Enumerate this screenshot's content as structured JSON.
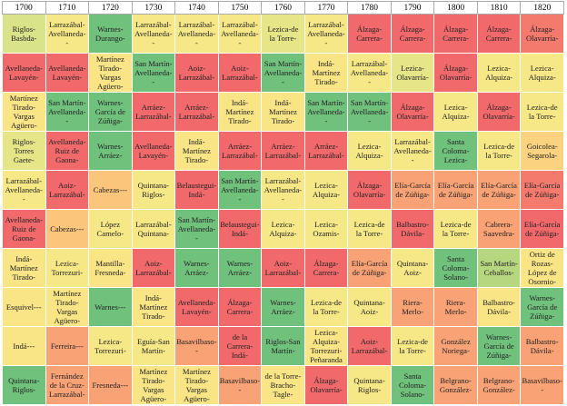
{
  "table": {
    "columns": [
      "1700",
      "1710",
      "1720",
      "1730",
      "1740",
      "1750",
      "1760",
      "1770",
      "1780",
      "1790",
      "1800",
      "1810",
      "1820"
    ],
    "rows": [
      [
        {
          "text": "Riglos-\nBasbda-",
          "color": "#d9e38a"
        },
        {
          "text": "Larrazábal-\nAvellaneda-\n-",
          "color": "#f7e887"
        },
        {
          "text": "Warnes-\nDurango-",
          "color": "#6fc17c"
        },
        {
          "text": "Larrazábal-\nAvellaneda-\n-",
          "color": "#f7e887"
        },
        {
          "text": "Larrazábal-\nAvellaneda-\n-",
          "color": "#f7e887"
        },
        {
          "text": "Larrazábal-\nAvellaneda-\n-",
          "color": "#f7e887"
        },
        {
          "text": "Lezica-de\nla Torre-",
          "color": "#e6e588"
        },
        {
          "text": "Larrazábal-\nAvellaneda-\n-",
          "color": "#f7e887"
        },
        {
          "text": "Álzaga-\nCarrera-",
          "color": "#f1696b"
        },
        {
          "text": "Álzaga-\nCarrera-",
          "color": "#f1696b"
        },
        {
          "text": "Álzaga-\nCarrera-",
          "color": "#f1696b"
        },
        {
          "text": "Álzaga-\nCarrera-",
          "color": "#f1696b"
        },
        {
          "text": "Álzaga-\nOlavarría-",
          "color": "#f37a6d"
        }
      ],
      [
        {
          "text": "Avellaneda-\nLavayén-",
          "color": "#f1696b"
        },
        {
          "text": "Avellaneda-\nLavayén-",
          "color": "#f1696b"
        },
        {
          "text": "Martínez\nTirado-\nVargas\nAgüero-",
          "color": "#f9e486"
        },
        {
          "text": "San Martín-\nAvellaneda-\n-",
          "color": "#6fc17c"
        },
        {
          "text": "Aoiz-\nLarrazábal-",
          "color": "#f1696b"
        },
        {
          "text": "Aoiz-\nLarrazábal-",
          "color": "#f1696b"
        },
        {
          "text": "San Martín-\nAvellaneda-\n-",
          "color": "#6fc17c"
        },
        {
          "text": "Indá-\nMartínez\nTirado-",
          "color": "#f9e486"
        },
        {
          "text": "Larrazábal-\nAvellaneda-\n-",
          "color": "#f7e887"
        },
        {
          "text": "Lezica-\nOlavarría-",
          "color": "#e6e588"
        },
        {
          "text": "Álzaga-\nOlavarría-",
          "color": "#f1696b"
        },
        {
          "text": "Lezica-\nAlquiza-",
          "color": "#f7e887"
        },
        {
          "text": "Lezica-\nAlquiza-",
          "color": "#f7e887"
        }
      ],
      [
        {
          "text": "Martínez\nTirado-\nVargas\nAgüero-",
          "color": "#f9e486"
        },
        {
          "text": "San Martín-\nAvellaneda-\n-",
          "color": "#6fc17c"
        },
        {
          "text": "Warnes-\nGarcía de\nZúñiga-",
          "color": "#6fc17c"
        },
        {
          "text": "Arráez-\nLarrazábal-",
          "color": "#f1696b"
        },
        {
          "text": "Arráez-\nLarrazábal-",
          "color": "#f1696b"
        },
        {
          "text": "Indá-\nMartínez\nTirado-",
          "color": "#f9e486"
        },
        {
          "text": "Indá-\nMartínez\nTirado-",
          "color": "#f9e486"
        },
        {
          "text": "San Martín-\nAvellaneda-\n-",
          "color": "#6fc17c"
        },
        {
          "text": "San Martín-\nAvellaneda-\n-",
          "color": "#6fc17c"
        },
        {
          "text": "Álzaga-\nOlavarría-",
          "color": "#f1696b"
        },
        {
          "text": "Lezica-\nAlquiza-",
          "color": "#f7e887"
        },
        {
          "text": "Álzaga-\nOlavarría-",
          "color": "#f1696b"
        },
        {
          "text": "Lezica-de\nla Torre-",
          "color": "#f7e887"
        }
      ],
      [
        {
          "text": "Riglos-\nTorres\nGaete-",
          "color": "#e6e588"
        },
        {
          "text": "Avellaneda-\nRuiz de\nGaona-",
          "color": "#f1696b"
        },
        {
          "text": "Warnes-\nArráez-",
          "color": "#6fc17c"
        },
        {
          "text": "Avellaneda-\nLavayén-",
          "color": "#f1696b"
        },
        {
          "text": "Indá-\nMartínez\nTirado-",
          "color": "#f9e486"
        },
        {
          "text": "Arráez-\nLarrazábal-",
          "color": "#f1696b"
        },
        {
          "text": "Arráez-\nLarrazábal-",
          "color": "#f1696b"
        },
        {
          "text": "Arráez-\nLarrazábal-",
          "color": "#f1696b"
        },
        {
          "text": "Lezica-\nAlquiza-",
          "color": "#f7e887"
        },
        {
          "text": "Larrazábal-\nAvellaneda-\n-",
          "color": "#f7e887"
        },
        {
          "text": "Santa\nColoma-\nLezica-",
          "color": "#6fc17c"
        },
        {
          "text": "Lezica-de\nla Torre-",
          "color": "#f7e887"
        },
        {
          "text": "Goicolea-\nSegarola-",
          "color": "#fbd27f"
        }
      ],
      [
        {
          "text": "Larrazábal-\nAvellaneda-\n-",
          "color": "#f7e887"
        },
        {
          "text": "Aoiz-\nLarrazábal-",
          "color": "#f1696b"
        },
        {
          "text": "Cabezas---",
          "color": "#fbc57c"
        },
        {
          "text": "Quintana-\nRiglos-",
          "color": "#f7e887"
        },
        {
          "text": "Belaustegui-\nIndá-",
          "color": "#f1696b"
        },
        {
          "text": "San Martín-\nAvellaneda-\n-",
          "color": "#6fc17c"
        },
        {
          "text": "Larrazábal-\nAvellaneda-\n-",
          "color": "#f7e887"
        },
        {
          "text": "Lezica-\nAlquiza-",
          "color": "#f7e887"
        },
        {
          "text": "Álzaga-\nOlavarría-",
          "color": "#f1696b"
        },
        {
          "text": "Elía-García\nde Zúñiga-",
          "color": "#f8a275"
        },
        {
          "text": "Elía-García\nde Zúñiga-",
          "color": "#f8a275"
        },
        {
          "text": "Elía-García\nde Zúñiga-",
          "color": "#f8a275"
        },
        {
          "text": "Elía-García\nde Zúñiga-",
          "color": "#f37a6d"
        }
      ],
      [
        {
          "text": "Avellaneda-\nRuiz de\nGaona-",
          "color": "#f1696b"
        },
        {
          "text": "Cabezas---",
          "color": "#fbc57c"
        },
        {
          "text": "López\nCamelo-",
          "color": "#f7e887"
        },
        {
          "text": "Larrazábal-\nQuintana-",
          "color": "#f7e887"
        },
        {
          "text": "San Martín-\nAvellaneda-\n-",
          "color": "#6fc17c"
        },
        {
          "text": "Belaustegui-\nIndá-",
          "color": "#f1696b"
        },
        {
          "text": "Lezica-\nAlquiza-",
          "color": "#f7e887"
        },
        {
          "text": "Lezica-\nOzamis-",
          "color": "#f7e887"
        },
        {
          "text": "Lezica-de\nla Torre-",
          "color": "#f7e887"
        },
        {
          "text": "Balbastro-\nDávila-",
          "color": "#f1696b"
        },
        {
          "text": "Lezica-de\nla Torre-",
          "color": "#f7e887"
        },
        {
          "text": "Cabrera-\nSaavedra-",
          "color": "#f8a275"
        },
        {
          "text": "Elía-García\nde Zúñiga-",
          "color": "#f1696b"
        }
      ],
      [
        {
          "text": "Indá-\nMartínez\nTirado-",
          "color": "#f9e486"
        },
        {
          "text": "Lezica-\nTorrezuri-",
          "color": "#f7e887"
        },
        {
          "text": "Mantilla-\nFresneda-",
          "color": "#f9e486"
        },
        {
          "text": "Aoiz-\nLarrazábal-",
          "color": "#f1696b"
        },
        {
          "text": "Warnes-\nArráez-",
          "color": "#6fc17c"
        },
        {
          "text": "Warnes-\nArráez-",
          "color": "#6fc17c"
        },
        {
          "text": "Aoiz-\nLarrazábal-",
          "color": "#f1696b"
        },
        {
          "text": "Álzaga-\nCarrera-",
          "color": "#f1696b"
        },
        {
          "text": "Elía-García\nde Zúñiga-",
          "color": "#f8a275"
        },
        {
          "text": "Quintana-\nAoiz-",
          "color": "#f7e887"
        },
        {
          "text": "Santa\nColoma-\nSolano-",
          "color": "#6fc17c"
        },
        {
          "text": "San Martín-\nCeballos-",
          "color": "#b6d680"
        },
        {
          "text": "Ortiz de\nRozas-\nLópez de\nOsornio-",
          "color": "#f9e486"
        }
      ],
      [
        {
          "text": "Esquivel---",
          "color": "#f9e486"
        },
        {
          "text": "Martínez\nTirado-\nVargas\nAgüero-",
          "color": "#f9e486"
        },
        {
          "text": "Warnes---",
          "color": "#6fc17c"
        },
        {
          "text": "Indá-\nMartínez\nTirado-",
          "color": "#f9e486"
        },
        {
          "text": "Avellaneda-\nLavayén-",
          "color": "#f1696b"
        },
        {
          "text": "Álzaga-\nCarrera-",
          "color": "#f1696b"
        },
        {
          "text": "Warnes-\nArráez-",
          "color": "#6fc17c"
        },
        {
          "text": "Lezica-de\nla Torre-",
          "color": "#f7e887"
        },
        {
          "text": "Quintana-\nAoiz-",
          "color": "#f7e887"
        },
        {
          "text": "Riera-\nMerlo-",
          "color": "#f8a275"
        },
        {
          "text": "Riera-\nMerlo-",
          "color": "#f8a275"
        },
        {
          "text": "Balbastro-\nDávila-",
          "color": "#f9e486"
        },
        {
          "text": "Warnes-\nGarcía de\nZúñiga-",
          "color": "#6fc17c"
        }
      ],
      [
        {
          "text": "Indá---",
          "color": "#f9e486"
        },
        {
          "text": "Ferreira---",
          "color": "#f8a275"
        },
        {
          "text": "Lezica-\nTorrezuri-",
          "color": "#f7e887"
        },
        {
          "text": "Eguía-San\nMartín-",
          "color": "#f7e887"
        },
        {
          "text": "Basavilbaso-\n-",
          "color": "#f8a275"
        },
        {
          "text": "de la\nCarrera-\nIndá-",
          "color": "#f1696b"
        },
        {
          "text": "Riglos-San\nMartín-",
          "color": "#6fc17c"
        },
        {
          "text": "Lezica-\nAlquiza-\nTorrezuri-\nPeñaranda",
          "color": "#f9e486"
        },
        {
          "text": "Aoiz-\nLarrazábal-",
          "color": "#f1696b"
        },
        {
          "text": "Lezica-de\nla Torre-",
          "color": "#f7e887"
        },
        {
          "text": "González\nNoriega-",
          "color": "#f8a275"
        },
        {
          "text": "Warnes-\nGarcía de\nZúñiga-",
          "color": "#6fc17c"
        },
        {
          "text": "Balbastro-\nDávila-",
          "color": "#f8a275"
        }
      ],
      [
        {
          "text": "Quintana-\nRiglos-",
          "color": "#6fc17c"
        },
        {
          "text": "Fernández\nde la Cruz-\nLarrazábal-",
          "color": "#f8a275"
        },
        {
          "text": "Fresneda---",
          "color": "#f8a275"
        },
        {
          "text": "Martínez\nTirado-\nVargas\nAgüero-",
          "color": "#f9e486"
        },
        {
          "text": "Martínez\nTirado-\nVargas\nAgüero-",
          "color": "#f9e486"
        },
        {
          "text": "Basavilbaso-\n-",
          "color": "#f8a275"
        },
        {
          "text": "de la Torre-\nBracho-\nTagle-",
          "color": "#f9e486"
        },
        {
          "text": "Álzaga-\nOlavarría-",
          "color": "#f1696b"
        },
        {
          "text": "Quintana-\nRiglos-",
          "color": "#f7e887"
        },
        {
          "text": "Santa\nColoma-\nSolano-",
          "color": "#6fc17c"
        },
        {
          "text": "Belgrano-\nGonzález-",
          "color": "#f8a275"
        },
        {
          "text": "Belgrano-\nGonzález-",
          "color": "#f8a275"
        },
        {
          "text": "Basavilbaso-\n-",
          "color": "#f8a275"
        }
      ]
    ]
  }
}
